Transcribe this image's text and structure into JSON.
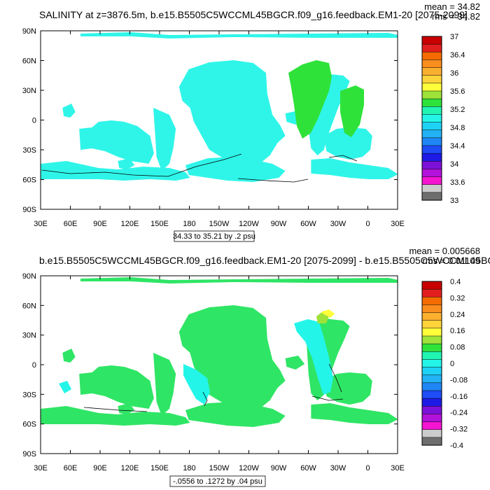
{
  "panels": [
    {
      "title": "SALINITY at z=3876.5m, b.e15.B5505C5WCCML45BGCR.f09_g16.feedback.EM1-20 [2075-2099]",
      "mean_text": "mean = 34.82",
      "rms_text": "rms = 34.82",
      "contour_info": "34.33 to 35.21 by .2 psu",
      "colorbar_labels": [
        "37",
        "36.4",
        "36",
        "35.6",
        "35.2",
        "34.8",
        "34.4",
        "34",
        "33.6",
        "33"
      ],
      "colorbar_colors": [
        "#c80000",
        "#e21e1e",
        "#f56b00",
        "#f98d1d",
        "#fbb02f",
        "#ffd43a",
        "#ffff3a",
        "#9ee23a",
        "#2fe23a",
        "#21f5b2",
        "#24f5e9",
        "#1ed2f5",
        "#22b2f5",
        "#1f86f5",
        "#1e4cf5",
        "#1d1ae6",
        "#7c12d9",
        "#b212d9",
        "#f514d0",
        "#cccccc",
        "#6e6e6e"
      ],
      "ocean_color": "#2ff5e9"
    },
    {
      "title": "b.e15.B5505C5WCCML45BGCR.f09_g16.feedback.EM1-20 [2075-2099] - b.e15.B5505C5WCCML45BGCR",
      "mean_text": "mean = 0.005668",
      "rms_text": "rms = 0.01109",
      "contour_info": "-.0556 to .1272 by .04 psu",
      "colorbar_labels": [
        "0.4",
        "0.32",
        "0.24",
        "0.16",
        "0.08",
        "0",
        "-0.08",
        "-0.16",
        "-0.24",
        "-0.32",
        "-0.4"
      ],
      "colorbar_colors": [
        "#c80000",
        "#e21e1e",
        "#f56b00",
        "#f98d1d",
        "#fbb02f",
        "#ffd43a",
        "#ffff3a",
        "#9ee23a",
        "#2fe23a",
        "#21f5b2",
        "#24f5e9",
        "#1ed2f5",
        "#22b2f5",
        "#1f86f5",
        "#1e4cf5",
        "#1d1ae6",
        "#7c12d9",
        "#b212d9",
        "#f514d0",
        "#cccccc",
        "#6e6e6e"
      ],
      "ocean_color": "#2fe565"
    }
  ],
  "axes": {
    "lat_labels": [
      "90N",
      "60N",
      "30N",
      "0",
      "30S",
      "60S",
      "90S"
    ],
    "lon_labels": [
      "30E",
      "60E",
      "90E",
      "120E",
      "150E",
      "180",
      "150W",
      "120W",
      "90W",
      "60W",
      "30W",
      "0",
      "30E"
    ]
  }
}
